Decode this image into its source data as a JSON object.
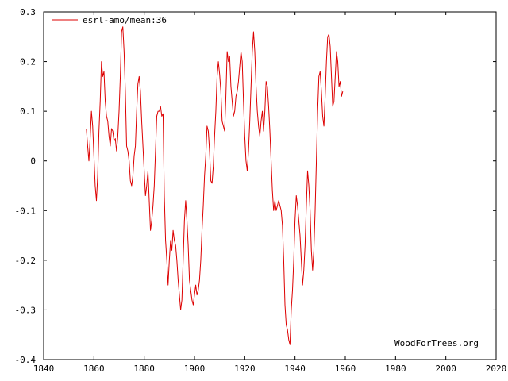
{
  "chart_data": {
    "type": "line",
    "title": "",
    "xlabel": "",
    "ylabel": "",
    "xlim": [
      1840,
      2020
    ],
    "ylim": [
      -0.4,
      0.3
    ],
    "x_ticks": [
      1840,
      1860,
      1880,
      1900,
      1920,
      1940,
      1960,
      1980,
      2000,
      2020
    ],
    "y_ticks": [
      -0.4,
      -0.3,
      -0.2,
      -0.1,
      0,
      0.1,
      0.2,
      0.3
    ],
    "x_tick_labels": [
      "1840",
      "1860",
      "1880",
      "1900",
      "1920",
      "1940",
      "1960",
      "1980",
      "2000",
      "2020"
    ],
    "y_tick_labels": [
      "-0.4",
      "-0.3",
      "-0.2",
      "-0.1",
      "0",
      "0.1",
      "0.2",
      "0.3"
    ],
    "grid": false,
    "legend_position": "top-left",
    "series": [
      {
        "name": "esrl-amo/mean:36",
        "color": "#dd0000",
        "points": [
          [
            1857.0,
            0.065
          ],
          [
            1857.5,
            0.03
          ],
          [
            1858.0,
            0.0
          ],
          [
            1858.5,
            0.045
          ],
          [
            1859.0,
            0.1
          ],
          [
            1859.5,
            0.07
          ],
          [
            1860.0,
            0.01
          ],
          [
            1860.5,
            -0.05
          ],
          [
            1861.0,
            -0.08
          ],
          [
            1861.5,
            -0.03
          ],
          [
            1862.0,
            0.06
          ],
          [
            1862.5,
            0.12
          ],
          [
            1863.0,
            0.2
          ],
          [
            1863.5,
            0.17
          ],
          [
            1864.0,
            0.18
          ],
          [
            1864.5,
            0.12
          ],
          [
            1865.0,
            0.09
          ],
          [
            1865.5,
            0.08
          ],
          [
            1866.0,
            0.05
          ],
          [
            1866.5,
            0.03
          ],
          [
            1867.0,
            0.065
          ],
          [
            1867.5,
            0.06
          ],
          [
            1868.0,
            0.04
          ],
          [
            1868.5,
            0.045
          ],
          [
            1869.0,
            0.02
          ],
          [
            1869.5,
            0.05
          ],
          [
            1870.0,
            0.1
          ],
          [
            1870.5,
            0.17
          ],
          [
            1871.0,
            0.26
          ],
          [
            1871.5,
            0.27
          ],
          [
            1872.0,
            0.22
          ],
          [
            1872.5,
            0.14
          ],
          [
            1873.0,
            0.03
          ],
          [
            1873.5,
            0.02
          ],
          [
            1874.0,
            0.0
          ],
          [
            1874.5,
            -0.04
          ],
          [
            1875.0,
            -0.05
          ],
          [
            1875.5,
            -0.03
          ],
          [
            1876.0,
            0.01
          ],
          [
            1876.5,
            0.03
          ],
          [
            1877.0,
            0.1
          ],
          [
            1877.5,
            0.155
          ],
          [
            1878.0,
            0.17
          ],
          [
            1878.5,
            0.14
          ],
          [
            1879.0,
            0.08
          ],
          [
            1879.5,
            0.03
          ],
          [
            1880.0,
            -0.02
          ],
          [
            1880.5,
            -0.07
          ],
          [
            1881.0,
            -0.05
          ],
          [
            1881.5,
            -0.02
          ],
          [
            1882.0,
            -0.08
          ],
          [
            1882.5,
            -0.14
          ],
          [
            1883.0,
            -0.12
          ],
          [
            1883.5,
            -0.09
          ],
          [
            1884.0,
            -0.05
          ],
          [
            1884.5,
            0.02
          ],
          [
            1885.0,
            0.09
          ],
          [
            1885.5,
            0.1
          ],
          [
            1886.0,
            0.1
          ],
          [
            1886.5,
            0.11
          ],
          [
            1887.0,
            0.09
          ],
          [
            1887.5,
            0.095
          ],
          [
            1888.0,
            -0.07
          ],
          [
            1888.5,
            -0.16
          ],
          [
            1889.0,
            -0.2
          ],
          [
            1889.5,
            -0.25
          ],
          [
            1890.0,
            -0.2
          ],
          [
            1890.5,
            -0.16
          ],
          [
            1891.0,
            -0.18
          ],
          [
            1891.5,
            -0.14
          ],
          [
            1892.0,
            -0.16
          ],
          [
            1892.5,
            -0.17
          ],
          [
            1893.0,
            -0.2
          ],
          [
            1893.5,
            -0.24
          ],
          [
            1894.0,
            -0.27
          ],
          [
            1894.5,
            -0.3
          ],
          [
            1895.0,
            -0.28
          ],
          [
            1895.5,
            -0.2
          ],
          [
            1896.0,
            -0.12
          ],
          [
            1896.5,
            -0.08
          ],
          [
            1897.0,
            -0.12
          ],
          [
            1897.5,
            -0.17
          ],
          [
            1898.0,
            -0.24
          ],
          [
            1898.5,
            -0.26
          ],
          [
            1899.0,
            -0.28
          ],
          [
            1899.5,
            -0.29
          ],
          [
            1900.0,
            -0.27
          ],
          [
            1900.5,
            -0.25
          ],
          [
            1901.0,
            -0.27
          ],
          [
            1901.5,
            -0.26
          ],
          [
            1902.0,
            -0.24
          ],
          [
            1902.5,
            -0.2
          ],
          [
            1903.0,
            -0.14
          ],
          [
            1903.5,
            -0.09
          ],
          [
            1904.0,
            -0.03
          ],
          [
            1904.5,
            0.01
          ],
          [
            1905.0,
            0.07
          ],
          [
            1905.5,
            0.06
          ],
          [
            1906.0,
            0.02
          ],
          [
            1906.5,
            -0.04
          ],
          [
            1907.0,
            -0.045
          ],
          [
            1907.5,
            -0.01
          ],
          [
            1908.0,
            0.05
          ],
          [
            1908.5,
            0.1
          ],
          [
            1909.0,
            0.17
          ],
          [
            1909.5,
            0.2
          ],
          [
            1910.0,
            0.175
          ],
          [
            1910.5,
            0.14
          ],
          [
            1911.0,
            0.08
          ],
          [
            1911.5,
            0.07
          ],
          [
            1912.0,
            0.06
          ],
          [
            1912.5,
            0.13
          ],
          [
            1913.0,
            0.22
          ],
          [
            1913.5,
            0.2
          ],
          [
            1914.0,
            0.21
          ],
          [
            1914.5,
            0.15
          ],
          [
            1915.0,
            0.12
          ],
          [
            1915.5,
            0.09
          ],
          [
            1916.0,
            0.1
          ],
          [
            1916.5,
            0.13
          ],
          [
            1917.0,
            0.14
          ],
          [
            1917.5,
            0.16
          ],
          [
            1918.0,
            0.19
          ],
          [
            1918.5,
            0.22
          ],
          [
            1919.0,
            0.2
          ],
          [
            1919.5,
            0.12
          ],
          [
            1920.0,
            0.05
          ],
          [
            1920.5,
            0.0
          ],
          [
            1921.0,
            -0.02
          ],
          [
            1921.5,
            0.02
          ],
          [
            1922.0,
            0.08
          ],
          [
            1922.5,
            0.15
          ],
          [
            1923.0,
            0.22
          ],
          [
            1923.5,
            0.26
          ],
          [
            1924.0,
            0.22
          ],
          [
            1924.5,
            0.15
          ],
          [
            1925.0,
            0.1
          ],
          [
            1925.5,
            0.07
          ],
          [
            1926.0,
            0.05
          ],
          [
            1926.5,
            0.08
          ],
          [
            1927.0,
            0.1
          ],
          [
            1927.5,
            0.06
          ],
          [
            1928.0,
            0.1
          ],
          [
            1928.5,
            0.16
          ],
          [
            1929.0,
            0.15
          ],
          [
            1929.5,
            0.11
          ],
          [
            1930.0,
            0.06
          ],
          [
            1930.5,
            0.0
          ],
          [
            1931.0,
            -0.06
          ],
          [
            1931.5,
            -0.1
          ],
          [
            1932.0,
            -0.08
          ],
          [
            1932.5,
            -0.1
          ],
          [
            1933.0,
            -0.09
          ],
          [
            1933.5,
            -0.08
          ],
          [
            1934.0,
            -0.09
          ],
          [
            1934.5,
            -0.1
          ],
          [
            1935.0,
            -0.13
          ],
          [
            1935.5,
            -0.2
          ],
          [
            1936.0,
            -0.29
          ],
          [
            1936.5,
            -0.33
          ],
          [
            1937.0,
            -0.34
          ],
          [
            1937.5,
            -0.36
          ],
          [
            1938.0,
            -0.37
          ],
          [
            1938.5,
            -0.3
          ],
          [
            1939.0,
            -0.26
          ],
          [
            1939.5,
            -0.2
          ],
          [
            1940.0,
            -0.12
          ],
          [
            1940.5,
            -0.07
          ],
          [
            1941.0,
            -0.09
          ],
          [
            1941.5,
            -0.12
          ],
          [
            1942.0,
            -0.15
          ],
          [
            1942.5,
            -0.2
          ],
          [
            1943.0,
            -0.25
          ],
          [
            1943.5,
            -0.22
          ],
          [
            1944.0,
            -0.17
          ],
          [
            1944.5,
            -0.09
          ],
          [
            1945.0,
            -0.02
          ],
          [
            1945.5,
            -0.05
          ],
          [
            1946.0,
            -0.1
          ],
          [
            1946.5,
            -0.18
          ],
          [
            1947.0,
            -0.22
          ],
          [
            1947.5,
            -0.18
          ],
          [
            1948.0,
            -0.1
          ],
          [
            1948.5,
            0.0
          ],
          [
            1949.0,
            0.1
          ],
          [
            1949.5,
            0.17
          ],
          [
            1950.0,
            0.18
          ],
          [
            1950.5,
            0.14
          ],
          [
            1951.0,
            0.09
          ],
          [
            1951.5,
            0.07
          ],
          [
            1952.0,
            0.13
          ],
          [
            1952.5,
            0.2
          ],
          [
            1953.0,
            0.25
          ],
          [
            1953.5,
            0.255
          ],
          [
            1954.0,
            0.23
          ],
          [
            1954.5,
            0.17
          ],
          [
            1955.0,
            0.11
          ],
          [
            1955.5,
            0.12
          ],
          [
            1956.0,
            0.17
          ],
          [
            1956.5,
            0.22
          ],
          [
            1957.0,
            0.2
          ],
          [
            1957.5,
            0.15
          ],
          [
            1958.0,
            0.16
          ],
          [
            1958.5,
            0.13
          ],
          [
            1959.0,
            0.14
          ]
        ]
      }
    ]
  },
  "credit": "WoodForTrees.org"
}
